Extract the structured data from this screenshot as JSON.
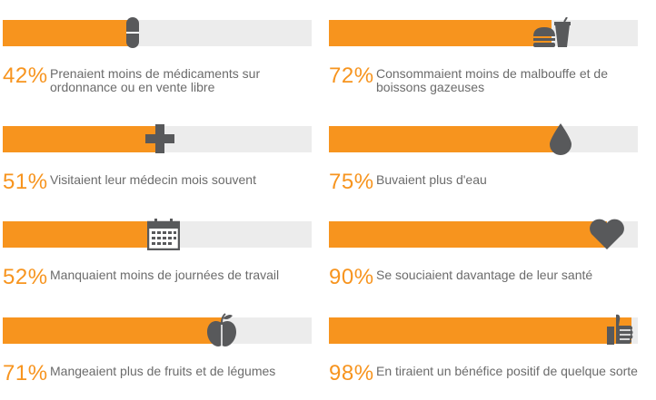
{
  "colors": {
    "accent": "#f7941e",
    "track": "#ececec",
    "icon": "#58595b",
    "text": "#6b6b6b"
  },
  "chart_data": {
    "type": "bar",
    "ylim": [
      0,
      100
    ],
    "items": [
      {
        "percent": 42,
        "percent_label": "42%",
        "label": "Prenaient moins de médicaments sur ordonnance ou en vente libre",
        "icon": "pill-icon"
      },
      {
        "percent": 72,
        "percent_label": "72%",
        "label": "Consommaient moins de malbouffe et de boissons gazeuses",
        "icon": "fast-food-icon"
      },
      {
        "percent": 51,
        "percent_label": "51%",
        "label": "Visitaient leur médecin mois souvent",
        "icon": "medical-cross-icon"
      },
      {
        "percent": 75,
        "percent_label": "75%",
        "label": "Buvaient plus d'eau",
        "icon": "water-drop-icon"
      },
      {
        "percent": 52,
        "percent_label": "52%",
        "label": "Manquaient moins de journées de travail",
        "icon": "calendar-icon"
      },
      {
        "percent": 90,
        "percent_label": "90%",
        "label": "Se souciaient davantage de leur santé",
        "icon": "heart-icon"
      },
      {
        "percent": 71,
        "percent_label": "71%",
        "label": "Mangeaient plus de fruits et de légumes",
        "icon": "apple-icon"
      },
      {
        "percent": 98,
        "percent_label": "98%",
        "label": "En tiraient un bénéfice positif de quelque sorte",
        "icon": "thumbs-up-icon"
      }
    ]
  }
}
